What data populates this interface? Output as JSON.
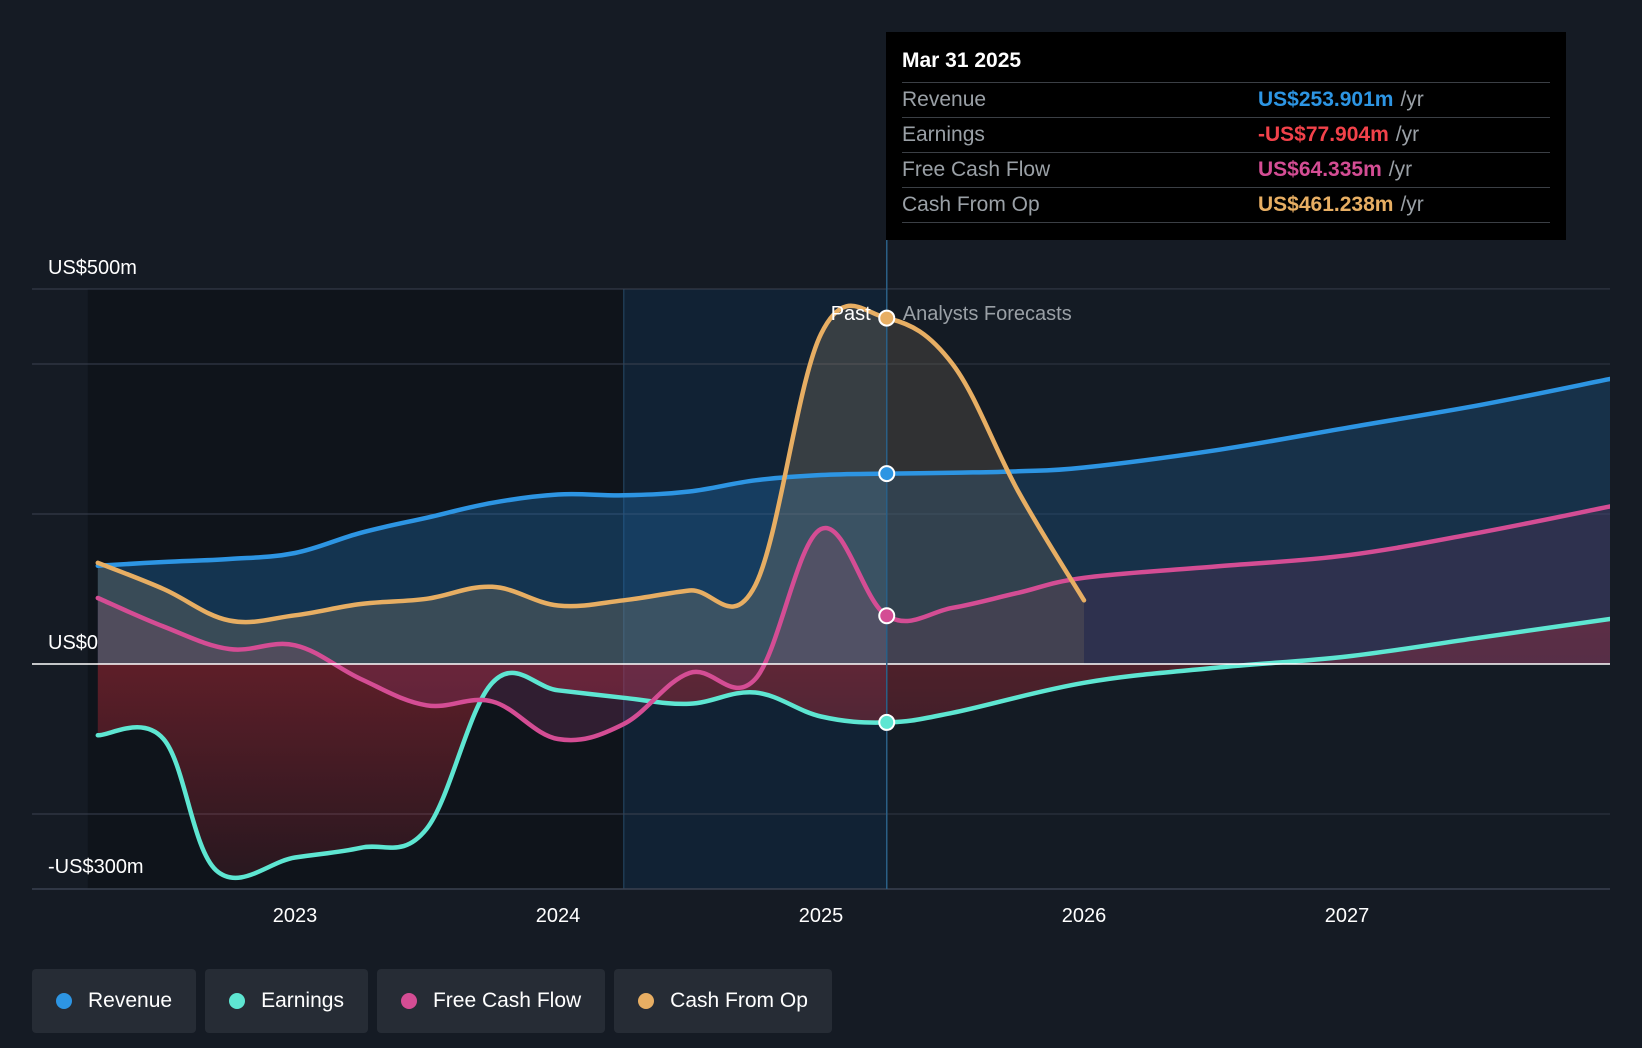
{
  "chart_data": {
    "type": "area",
    "y_axis": {
      "labels": [
        "US$500m",
        "US$0",
        "-US$300m"
      ],
      "ylim": [
        -300,
        500
      ],
      "gridlines": [
        500,
        400,
        200,
        0,
        -200,
        -300
      ]
    },
    "x_axis": {
      "ticks": [
        "2023",
        "2024",
        "2025",
        "2026",
        "2027"
      ],
      "xlim": [
        2022.0,
        2028.0
      ]
    },
    "divider": {
      "date": 2025.25,
      "past_label": "Past",
      "forecast_label": "Analysts Forecasts",
      "highlight_start": 2024.25
    },
    "series": [
      {
        "name": "Revenue",
        "color": "#2d95e3",
        "points": [
          [
            2022.25,
            131
          ],
          [
            2022.5,
            136
          ],
          [
            2022.75,
            140
          ],
          [
            2023.0,
            148
          ],
          [
            2023.25,
            175
          ],
          [
            2023.5,
            195
          ],
          [
            2023.75,
            215
          ],
          [
            2024.0,
            226
          ],
          [
            2024.25,
            225
          ],
          [
            2024.5,
            230
          ],
          [
            2024.75,
            245
          ],
          [
            2025.0,
            252
          ],
          [
            2025.25,
            253.901
          ],
          [
            2025.5,
            255
          ],
          [
            2025.75,
            257
          ],
          [
            2026.0,
            262
          ],
          [
            2026.5,
            285
          ],
          [
            2027.0,
            315
          ],
          [
            2027.5,
            345
          ],
          [
            2028.0,
            380
          ]
        ]
      },
      {
        "name": "Earnings",
        "color": "#5ee6d2",
        "points": [
          [
            2022.25,
            -95
          ],
          [
            2022.5,
            -100
          ],
          [
            2022.7,
            -275
          ],
          [
            2023.0,
            -258
          ],
          [
            2023.25,
            -245
          ],
          [
            2023.5,
            -220
          ],
          [
            2023.75,
            -25
          ],
          [
            2024.0,
            -35
          ],
          [
            2024.25,
            -45
          ],
          [
            2024.5,
            -53
          ],
          [
            2024.75,
            -38
          ],
          [
            2025.0,
            -70
          ],
          [
            2025.25,
            -77.904
          ],
          [
            2025.5,
            -65
          ],
          [
            2026.0,
            -25
          ],
          [
            2026.5,
            -5
          ],
          [
            2027.0,
            10
          ],
          [
            2027.5,
            35
          ],
          [
            2028.0,
            60
          ]
        ]
      },
      {
        "name": "Free Cash Flow",
        "color": "#d44d94",
        "points": [
          [
            2022.25,
            88
          ],
          [
            2022.5,
            50
          ],
          [
            2022.75,
            20
          ],
          [
            2023.0,
            25
          ],
          [
            2023.25,
            -20
          ],
          [
            2023.5,
            -55
          ],
          [
            2023.75,
            -50
          ],
          [
            2024.0,
            -100
          ],
          [
            2024.25,
            -80
          ],
          [
            2024.5,
            -12
          ],
          [
            2024.75,
            -20
          ],
          [
            2025.0,
            180
          ],
          [
            2025.25,
            64.335
          ],
          [
            2025.5,
            75
          ],
          [
            2025.75,
            95
          ],
          [
            2026.0,
            115
          ],
          [
            2026.5,
            130
          ],
          [
            2027.0,
            145
          ],
          [
            2027.5,
            175
          ],
          [
            2028.0,
            210
          ]
        ]
      },
      {
        "name": "Cash From Op",
        "color": "#e7ae63",
        "points": [
          [
            2022.25,
            135
          ],
          [
            2022.5,
            100
          ],
          [
            2022.75,
            58
          ],
          [
            2023.0,
            65
          ],
          [
            2023.25,
            80
          ],
          [
            2023.5,
            87
          ],
          [
            2023.75,
            103
          ],
          [
            2024.0,
            78
          ],
          [
            2024.25,
            85
          ],
          [
            2024.5,
            98
          ],
          [
            2024.75,
            105
          ],
          [
            2025.0,
            440
          ],
          [
            2025.25,
            461.238
          ],
          [
            2025.5,
            400
          ],
          [
            2025.75,
            230
          ],
          [
            2026.0,
            85
          ]
        ]
      }
    ]
  },
  "tooltip": {
    "date": "Mar 31 2025",
    "rows": [
      {
        "label": "Revenue",
        "value": "US$253.901m",
        "unit": "/yr",
        "color": "#2d95e3"
      },
      {
        "label": "Earnings",
        "value": "-US$77.904m",
        "unit": "/yr",
        "color": "#f2424a"
      },
      {
        "label": "Free Cash Flow",
        "value": "US$64.335m",
        "unit": "/yr",
        "color": "#d44d94"
      },
      {
        "label": "Cash From Op",
        "value": "US$461.238m",
        "unit": "/yr",
        "color": "#e7ae63"
      }
    ]
  },
  "legend": [
    {
      "label": "Revenue",
      "color": "#2d95e3"
    },
    {
      "label": "Earnings",
      "color": "#5ee6d2"
    },
    {
      "label": "Free Cash Flow",
      "color": "#d44d94"
    },
    {
      "label": "Cash From Op",
      "color": "#e7ae63"
    }
  ]
}
